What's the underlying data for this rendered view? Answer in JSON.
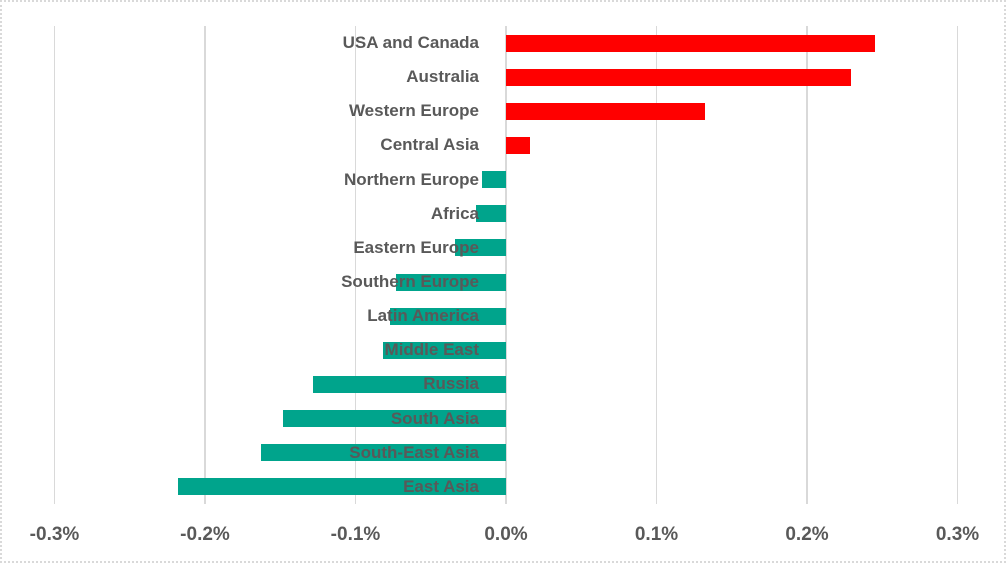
{
  "chart_data": {
    "type": "bar",
    "orientation": "horizontal",
    "title": "",
    "xlabel": "",
    "ylabel": "",
    "categories": [
      "USA and Canada",
      "Australia",
      "Western Europe",
      "Central Asia",
      "Northern Europe",
      "Africa",
      "Eastern Europe",
      "Southern Europe",
      "Latin America",
      "Middle East",
      "Russia",
      "South Asia",
      "South-East Asia",
      "East Asia"
    ],
    "values": [
      0.245,
      0.229,
      0.132,
      0.016,
      -0.016,
      -0.02,
      -0.034,
      -0.073,
      -0.077,
      -0.082,
      -0.128,
      -0.148,
      -0.163,
      -0.218
    ],
    "value_unit": "%",
    "xlim": [
      -0.3,
      0.3
    ],
    "x_tick_values": [
      -0.3,
      -0.2,
      -0.1,
      0.0,
      0.1,
      0.2,
      0.3
    ],
    "x_tick_labels": [
      "-0.3%",
      "-0.2%",
      "-0.1%",
      "0.0%",
      "0.1%",
      "0.2%",
      "0.3%"
    ],
    "gridlines": "vertical",
    "legend": "none",
    "colors": {
      "positive_bar": "#ff0000",
      "negative_bar": "#00a48c",
      "gridline": "#d9d9d9",
      "axis_text": "#595959",
      "category_text": "#595959",
      "background": "#ffffff",
      "chart_border": "#d9d9d9"
    }
  }
}
